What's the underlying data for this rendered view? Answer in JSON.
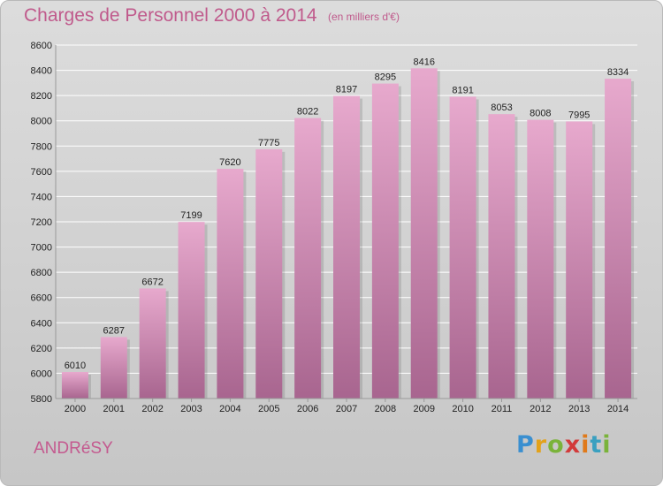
{
  "header": {
    "title": "Charges de Personnel 2000 à 2014",
    "unit_note": "(en milliers d'€)"
  },
  "footer": {
    "commune": "ANDRéSY",
    "logo": {
      "letters": [
        "P",
        "r",
        "o",
        "x",
        "i",
        "t",
        "i"
      ],
      "colors": [
        "#3a8fd0",
        "#e3a21a",
        "#7ab33a",
        "#d23a3a",
        "#e07a1a",
        "#3aa0c0",
        "#7ab33a"
      ]
    }
  },
  "colors": {
    "bar_top": "#e7a9cd",
    "bar_bottom": "#a8658f",
    "text_accent": "#c05a8c",
    "grid": "#ffffff"
  },
  "chart_data": {
    "type": "bar",
    "title": "Charges de Personnel 2000 à 2014",
    "subtitle": "(en milliers d'€)",
    "categories": [
      "2000",
      "2001",
      "2002",
      "2003",
      "2004",
      "2005",
      "2006",
      "2007",
      "2008",
      "2009",
      "2010",
      "2011",
      "2012",
      "2013",
      "2014"
    ],
    "values": [
      6010,
      6287,
      6672,
      7199,
      7620,
      7775,
      8022,
      8197,
      8295,
      8416,
      8191,
      8053,
      8008,
      7995,
      8334
    ],
    "ylim": [
      5800,
      8600
    ],
    "yticks": [
      5800,
      6000,
      6200,
      6400,
      6600,
      6800,
      7000,
      7200,
      7400,
      7600,
      7800,
      8000,
      8200,
      8400,
      8600
    ],
    "grid": true,
    "data_labels": true
  }
}
